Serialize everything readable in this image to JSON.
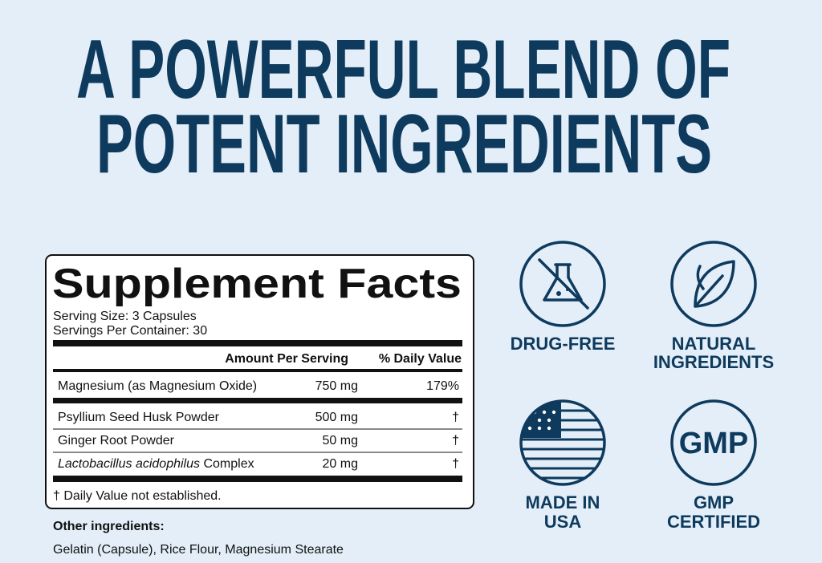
{
  "title": {
    "lines": [
      "A POWERFUL BLEND OF",
      "POTENT INGREDIENTS"
    ]
  },
  "facts": {
    "heading": "Supplement Facts",
    "serving_size": "Serving Size: 3 Capsules",
    "servings_per_container": "Servings Per Container: 30",
    "columns": [
      "Amount Per Serving",
      "% Daily Value"
    ],
    "rows": [
      {
        "name": "Magnesium (as Magnesium Oxide)",
        "amount": "750 mg",
        "dv": "179%"
      },
      {
        "name": "Psyllium Seed Husk Powder",
        "amount": "500 mg",
        "dv": "†"
      },
      {
        "name": "Ginger Root Powder",
        "amount": "50 mg",
        "dv": "†"
      },
      {
        "name": "Lactobacillus acidophilus",
        "name_suffix": "Complex",
        "amount": "20 mg",
        "dv": "†"
      }
    ],
    "footnote": "† Daily Value not established."
  },
  "other_ingredients": {
    "label": "Other ingredients:",
    "text": "Gelatin (Capsule), Rice Flour, Magnesium Stearate"
  },
  "badges": [
    {
      "lines": [
        "DRUG-FREE"
      ]
    },
    {
      "lines": [
        "NATURAL",
        "INGREDIENTS"
      ]
    },
    {
      "lines": [
        "MADE IN",
        "USA"
      ]
    },
    {
      "icon_text": "GMP",
      "lines": [
        "GMP",
        "CERTIFIED"
      ]
    }
  ]
}
